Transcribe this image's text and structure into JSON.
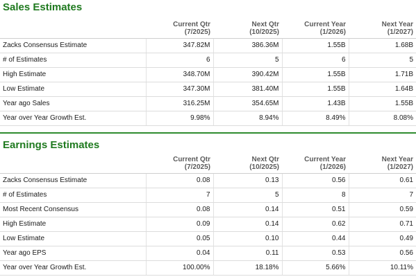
{
  "sales": {
    "title": "Sales Estimates",
    "columns": [
      {
        "line1": "Current Qtr",
        "line2": "(7/2025)"
      },
      {
        "line1": "Next Qtr",
        "line2": "(10/2025)"
      },
      {
        "line1": "Current Year",
        "line2": "(1/2026)"
      },
      {
        "line1": "Next Year",
        "line2": "(1/2027)"
      }
    ],
    "rows": [
      {
        "label": "Zacks Consensus Estimate",
        "values": [
          "347.82M",
          "386.36M",
          "1.55B",
          "1.68B"
        ]
      },
      {
        "label": "# of Estimates",
        "values": [
          "6",
          "5",
          "6",
          "5"
        ]
      },
      {
        "label": "High Estimate",
        "values": [
          "348.70M",
          "390.42M",
          "1.55B",
          "1.71B"
        ]
      },
      {
        "label": "Low Estimate",
        "values": [
          "347.30M",
          "381.40M",
          "1.55B",
          "1.64B"
        ]
      },
      {
        "label": "Year ago Sales",
        "values": [
          "316.25M",
          "354.65M",
          "1.43B",
          "1.55B"
        ]
      },
      {
        "label": "Year over Year Growth Est.",
        "values": [
          "9.98%",
          "8.94%",
          "8.49%",
          "8.08%"
        ]
      }
    ]
  },
  "earnings": {
    "title": "Earnings Estimates",
    "columns": [
      {
        "line1": "Current Qtr",
        "line2": "(7/2025)"
      },
      {
        "line1": "Next Qtr",
        "line2": "(10/2025)"
      },
      {
        "line1": "Current Year",
        "line2": "(1/2026)"
      },
      {
        "line1": "Next Year",
        "line2": "(1/2027)"
      }
    ],
    "rows": [
      {
        "label": "Zacks Consensus Estimate",
        "values": [
          "0.08",
          "0.13",
          "0.56",
          "0.61"
        ]
      },
      {
        "label": "# of Estimates",
        "values": [
          "7",
          "5",
          "8",
          "7"
        ]
      },
      {
        "label": "Most Recent Consensus",
        "values": [
          "0.08",
          "0.14",
          "0.51",
          "0.59"
        ]
      },
      {
        "label": "High Estimate",
        "values": [
          "0.09",
          "0.14",
          "0.62",
          "0.71"
        ]
      },
      {
        "label": "Low Estimate",
        "values": [
          "0.05",
          "0.10",
          "0.44",
          "0.49"
        ]
      },
      {
        "label": "Year ago EPS",
        "values": [
          "0.04",
          "0.11",
          "0.53",
          "0.56"
        ]
      },
      {
        "label": "Year over Year Growth Est.",
        "values": [
          "100.00%",
          "18.18%",
          "5.66%",
          "10.11%"
        ]
      }
    ]
  },
  "colors": {
    "accent_green": "#1f7a1f",
    "rule_green": "#2e8b2e"
  }
}
